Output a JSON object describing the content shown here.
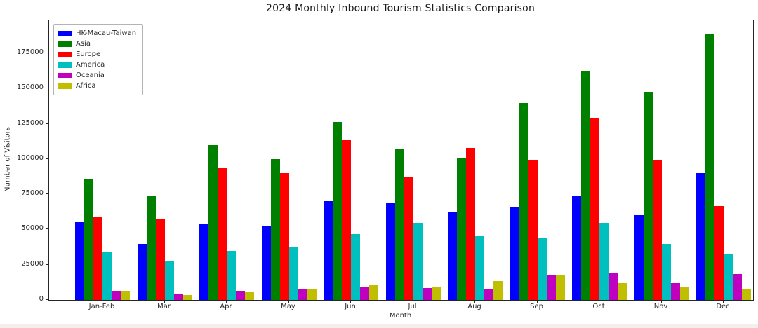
{
  "page": {
    "background_color": "#f7eeec",
    "figure_background_color": "#ffffff"
  },
  "chart_data": {
    "type": "bar",
    "title": "2024 Monthly Inbound Tourism Statistics Comparison",
    "xlabel": "Month",
    "ylabel": "Number of Visitors",
    "categories": [
      "Jan-Feb",
      "Mar",
      "Apr",
      "May",
      "Jun",
      "Jul",
      "Aug",
      "Sep",
      "Oct",
      "Nov",
      "Dec"
    ],
    "series": [
      {
        "name": "HK-Macau-Taiwan",
        "color": "#0000ff",
        "values": [
          55000,
          40000,
          54000,
          52500,
          70000,
          69000,
          62500,
          66000,
          74000,
          60000,
          90000
        ]
      },
      {
        "name": "Asia",
        "color": "#008000",
        "values": [
          86000,
          74000,
          110000,
          100000,
          126500,
          107000,
          100500,
          140000,
          162500,
          147500,
          189000
        ]
      },
      {
        "name": "Europe",
        "color": "#ff0000",
        "values": [
          59000,
          57500,
          94000,
          90000,
          113500,
          87000,
          108000,
          99000,
          129000,
          99500,
          66500
        ]
      },
      {
        "name": "America",
        "color": "#00bfbf",
        "values": [
          34000,
          28000,
          35000,
          37500,
          47000,
          54500,
          45500,
          44000,
          54500,
          40000,
          33000
        ]
      },
      {
        "name": "Oceania",
        "color": "#bf00bf",
        "values": [
          6500,
          4500,
          6500,
          7500,
          9500,
          8500,
          8000,
          17500,
          19500,
          12000,
          18500
        ]
      },
      {
        "name": "Africa",
        "color": "#bfbf00",
        "values": [
          6500,
          3500,
          6000,
          8000,
          10500,
          9500,
          13500,
          18000,
          12000,
          9000,
          7500
        ]
      }
    ],
    "yticks": [
      0,
      25000,
      50000,
      75000,
      100000,
      125000,
      150000,
      175000
    ],
    "ylim": [
      0,
      198450
    ],
    "grid": false,
    "legend_position": "upper left"
  }
}
